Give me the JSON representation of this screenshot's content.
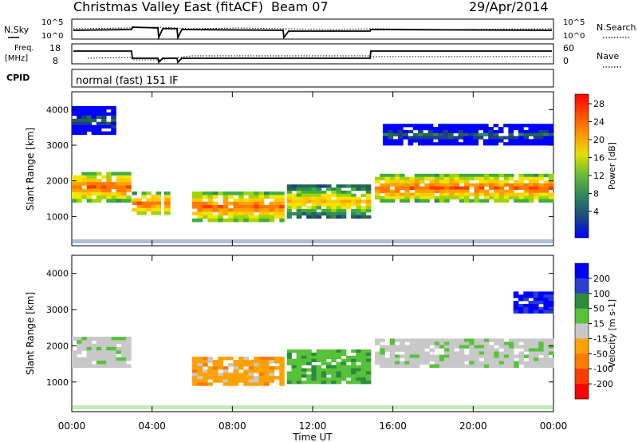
{
  "header": {
    "title": "Christmas Valley East (fitACF)",
    "beam": "Beam 07",
    "date": "29/Apr/2014"
  },
  "strip": {
    "nsky_label": "N.Sky",
    "nsky_ticks": [
      "10^5",
      "10^0"
    ],
    "nsearch_label": "N.Search",
    "nsearch_ticks": [
      "10^5",
      "10^0"
    ],
    "freq_label": "Freq.",
    "freq_unit": "[MHz]",
    "freq_ticks": [
      "18",
      "8"
    ],
    "nave_label": "Nave",
    "nave_ticks": [
      "60",
      "0"
    ],
    "cpid_label": "CPID",
    "cpid_value": "normal (fast) 151 IF"
  },
  "chart_data": [
    {
      "type": "heatmap",
      "name": "power",
      "ylabel": "Slant Range [km]",
      "ylim": [
        180,
        4500
      ],
      "yticks": [
        1000,
        2000,
        3000,
        4000
      ],
      "colorbar": {
        "label": "Power [dB]",
        "ticks": [
          "28",
          "24",
          "20",
          "16",
          "12",
          "8",
          "4"
        ],
        "colors": [
          "#ff0000",
          "#ff3c00",
          "#ff7a00",
          "#ffa200",
          "#ffc800",
          "#f2e600",
          "#9ed400",
          "#3fae40",
          "#2f8a5a",
          "#22664e",
          "#1d3c8c",
          "#0000ff"
        ]
      },
      "regions": [
        {
          "t": [
            0.0,
            2.95
          ],
          "r": [
            1400,
            2250
          ],
          "level": "high"
        },
        {
          "t": [
            3.0,
            4.9
          ],
          "r": [
            1050,
            1700
          ],
          "level": "high"
        },
        {
          "t": [
            6.0,
            10.6
          ],
          "r": [
            850,
            1700
          ],
          "level": "high"
        },
        {
          "t": [
            10.7,
            14.9
          ],
          "r": [
            950,
            1900
          ],
          "level": "mid"
        },
        {
          "t": [
            15.1,
            24.0
          ],
          "r": [
            1400,
            2200
          ],
          "level": "high"
        },
        {
          "t": [
            0.0,
            2.2
          ],
          "r": [
            3300,
            4100
          ],
          "level": "low"
        },
        {
          "t": [
            15.5,
            24.0
          ],
          "r": [
            3000,
            3600
          ],
          "level": "low"
        }
      ]
    },
    {
      "type": "heatmap",
      "name": "velocity",
      "ylabel": "Slant Range [km]",
      "xlabel": "Time UT",
      "xlim": [
        0,
        24
      ],
      "xticks": [
        "00:00",
        "04:00",
        "08:00",
        "12:00",
        "16:00",
        "20:00",
        "00:00"
      ],
      "ylim": [
        180,
        4500
      ],
      "yticks": [
        1000,
        2000,
        3000,
        4000
      ],
      "colorbar": {
        "label": "Velocity [m s-1]",
        "ticks": [
          "200",
          "100",
          "50",
          "15",
          "-15",
          "-50",
          "-100",
          "-200"
        ],
        "colors": [
          "#0000ff",
          "#2a3fd0",
          "#2d8a3c",
          "#55c23a",
          "#c8c8c8",
          "#ffa200",
          "#ff7a00",
          "#ff3c00",
          "#ff0000"
        ]
      },
      "regions": [
        {
          "t": [
            0.0,
            2.95
          ],
          "r": [
            1400,
            2250
          ],
          "level": "ground"
        },
        {
          "t": [
            6.0,
            10.6
          ],
          "r": [
            900,
            1700
          ],
          "level": "negative"
        },
        {
          "t": [
            10.7,
            14.9
          ],
          "r": [
            950,
            1900
          ],
          "level": "positive"
        },
        {
          "t": [
            15.1,
            24.0
          ],
          "r": [
            1400,
            2200
          ],
          "level": "ground"
        },
        {
          "t": [
            22.0,
            24.0
          ],
          "r": [
            2900,
            3500
          ],
          "level": "strong-positive"
        }
      ]
    }
  ]
}
